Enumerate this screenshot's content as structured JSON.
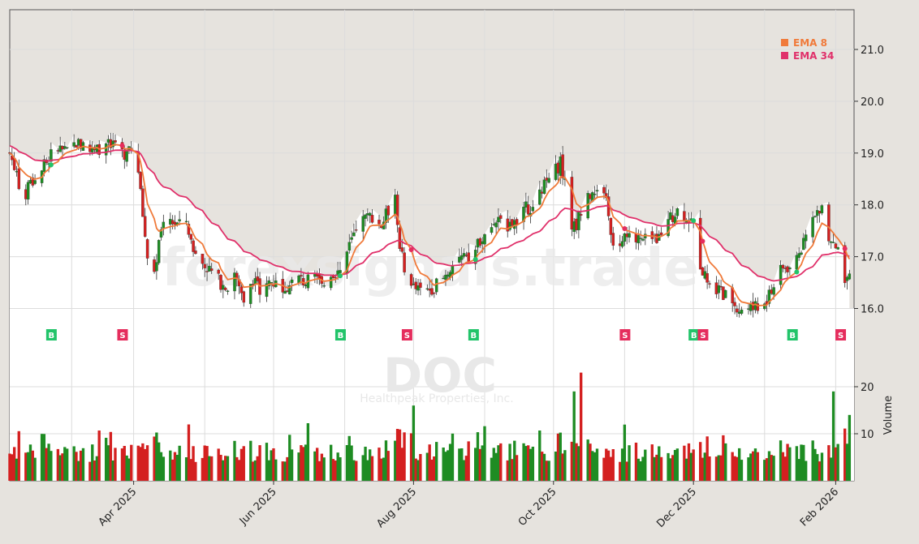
{
  "colors": {
    "background": "#e6e3de",
    "plot_white": "#ffffff",
    "grid": "#dcdcdc",
    "up": "#1e8c23",
    "down": "#d42020",
    "ema8": "#f07a3a",
    "ema34": "#e0306a",
    "buy": "#22c46a",
    "sell": "#e52d5d",
    "watermark": "#e8e8e8"
  },
  "watermark": {
    "site": "forexsignals.trade",
    "ticker": "DOC",
    "company": "Healthpeak Properties, Inc."
  },
  "chart_data": {
    "type": "candlestick",
    "price_axis": {
      "min": 15.3,
      "max": 21.8,
      "ticks": [
        16.0,
        17.0,
        18.0,
        19.0,
        20.0,
        21.0
      ],
      "tick_labels": [
        "16.0",
        "17.0",
        "18.0",
        "19.0",
        "20.0",
        "21.0"
      ]
    },
    "volume_axis": {
      "min": 0,
      "max": 30,
      "ticks": [
        10,
        20
      ],
      "tick_labels": [
        "10",
        "20"
      ],
      "label": "Volume"
    },
    "x_axis": {
      "labels": [
        "Apr 2025",
        "Jun 2025",
        "Aug 2025",
        "Oct 2025",
        "Dec 2025",
        "Feb 2026"
      ],
      "label_days": [
        54,
        115,
        176,
        237,
        298,
        360
      ],
      "grid_days": [
        27,
        54,
        85,
        115,
        146,
        176,
        207,
        237,
        268,
        298,
        329,
        360
      ]
    },
    "close_keys": [
      [
        0,
        19.0
      ],
      [
        3,
        18.6
      ],
      [
        6,
        18.1
      ],
      [
        9,
        18.4
      ],
      [
        13,
        18.6
      ],
      [
        17,
        18.9
      ],
      [
        21,
        19.1
      ],
      [
        25,
        19.0
      ],
      [
        29,
        19.2
      ],
      [
        33,
        19.1
      ],
      [
        37,
        19.0
      ],
      [
        41,
        19.2
      ],
      [
        45,
        19.1
      ],
      [
        49,
        19.0
      ],
      [
        53,
        19.0
      ],
      [
        56,
        18.6
      ],
      [
        58,
        17.8
      ],
      [
        60,
        17.0
      ],
      [
        63,
        16.7
      ],
      [
        66,
        17.5
      ],
      [
        70,
        17.7
      ],
      [
        74,
        17.6
      ],
      [
        77,
        17.7
      ],
      [
        80,
        17.1
      ],
      [
        83,
        16.9
      ],
      [
        86,
        16.8
      ],
      [
        90,
        16.6
      ],
      [
        94,
        16.4
      ],
      [
        98,
        16.6
      ],
      [
        102,
        16.2
      ],
      [
        106,
        16.6
      ],
      [
        110,
        16.2
      ],
      [
        113,
        16.5
      ],
      [
        117,
        16.5
      ],
      [
        121,
        16.4
      ],
      [
        125,
        16.6
      ],
      [
        129,
        16.5
      ],
      [
        133,
        16.6
      ],
      [
        136,
        16.4
      ],
      [
        140,
        16.7
      ],
      [
        144,
        16.7
      ],
      [
        147,
        17.1
      ],
      [
        150,
        17.4
      ],
      [
        154,
        17.7
      ],
      [
        158,
        17.8
      ],
      [
        162,
        17.6
      ],
      [
        166,
        18.0
      ],
      [
        168,
        18.3
      ],
      [
        170,
        17.1
      ],
      [
        173,
        16.7
      ],
      [
        176,
        16.4
      ],
      [
        180,
        16.3
      ],
      [
        184,
        16.4
      ],
      [
        188,
        16.5
      ],
      [
        192,
        16.8
      ],
      [
        196,
        17.0
      ],
      [
        200,
        16.9
      ],
      [
        204,
        17.3
      ],
      [
        208,
        17.5
      ],
      [
        212,
        17.7
      ],
      [
        216,
        17.6
      ],
      [
        220,
        17.7
      ],
      [
        224,
        17.9
      ],
      [
        228,
        18.0
      ],
      [
        232,
        18.3
      ],
      [
        236,
        18.6
      ],
      [
        240,
        18.8
      ],
      [
        242,
        18.5
      ],
      [
        244,
        17.6
      ],
      [
        247,
        17.6
      ],
      [
        250,
        18.1
      ],
      [
        254,
        18.3
      ],
      [
        257,
        18.4
      ],
      [
        260,
        18.0
      ],
      [
        263,
        17.3
      ],
      [
        267,
        17.3
      ],
      [
        271,
        17.4
      ],
      [
        275,
        17.3
      ],
      [
        279,
        17.3
      ],
      [
        283,
        17.4
      ],
      [
        287,
        17.7
      ],
      [
        291,
        17.9
      ],
      [
        295,
        17.8
      ],
      [
        298,
        17.6
      ],
      [
        300,
        17.0
      ],
      [
        303,
        16.6
      ],
      [
        306,
        16.5
      ],
      [
        310,
        16.3
      ],
      [
        314,
        16.2
      ],
      [
        318,
        16.0
      ],
      [
        322,
        16.0
      ],
      [
        326,
        16.0
      ],
      [
        330,
        16.1
      ],
      [
        334,
        16.6
      ],
      [
        338,
        16.8
      ],
      [
        342,
        16.8
      ],
      [
        346,
        17.3
      ],
      [
        350,
        17.7
      ],
      [
        354,
        17.9
      ],
      [
        357,
        17.4
      ],
      [
        360,
        17.1
      ],
      [
        362,
        17.0
      ],
      [
        364,
        16.5
      ],
      [
        366,
        16.7
      ]
    ],
    "signals": [
      {
        "day": 18,
        "type": "B",
        "label": "B"
      },
      {
        "day": 49,
        "type": "S",
        "label": "S"
      },
      {
        "day": 144,
        "type": "B",
        "label": "B"
      },
      {
        "day": 173,
        "type": "S",
        "label": "S"
      },
      {
        "day": 202,
        "type": "B",
        "label": "B"
      },
      {
        "day": 268,
        "type": "S",
        "label": "S"
      },
      {
        "day": 298,
        "type": "B",
        "label": "B"
      },
      {
        "day": 302,
        "type": "S",
        "label": "S"
      },
      {
        "day": 341,
        "type": "B",
        "label": "B"
      },
      {
        "day": 362,
        "type": "S",
        "label": "S"
      }
    ],
    "series": [
      {
        "name": "EMA 8",
        "period": 8
      },
      {
        "name": "EMA 34",
        "period": 34
      }
    ],
    "legend_position": "top-right",
    "grid": true
  }
}
